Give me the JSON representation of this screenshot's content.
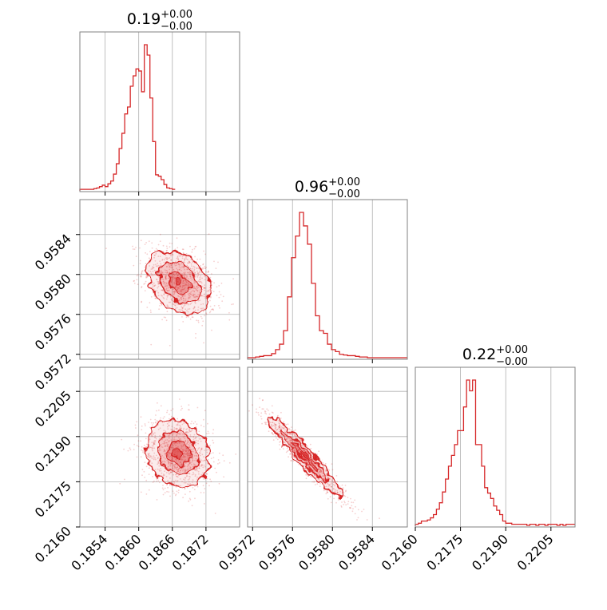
{
  "chart_data": {
    "type": "corner",
    "color": "#d62728",
    "parameters": [
      {
        "median": "0.19",
        "plus": "+0.00",
        "minus": "−0.00",
        "range": [
          1.8495,
          1.878
        ],
        "scale": 0.1,
        "ticks": [
          1.854,
          1.86,
          1.866,
          1.872
        ],
        "tick_labels": [
          "0.1854",
          "0.1860",
          "0.1866",
          "0.1872"
        ]
      },
      {
        "median": "0.96",
        "plus": "+0.00",
        "minus": "−0.00",
        "range": [
          0.95715,
          0.95875
        ],
        "scale": 1,
        "ticks": [
          0.9572,
          0.9576,
          0.958,
          0.9584
        ],
        "tick_labels": [
          "0.9572",
          "0.9576",
          "0.9580",
          "0.9584"
        ]
      },
      {
        "median": "0.22",
        "plus": "+0.00",
        "minus": "−0.00",
        "range": [
          0.216,
          0.2213
        ],
        "scale": 1,
        "ticks": [
          0.216,
          0.2175,
          0.219,
          0.2205
        ],
        "tick_labels": [
          "0.2160",
          "0.2175",
          "0.2190",
          "0.2205"
        ]
      }
    ],
    "histograms": [
      {
        "bins_start": 1.8495,
        "bin_width": 0.0005,
        "counts": [
          1,
          1,
          1,
          1,
          1,
          2,
          3,
          5,
          7,
          5,
          9,
          13,
          23,
          38,
          60,
          82,
          110,
          120,
          150,
          165,
          175,
          172,
          142,
          210,
          195,
          133,
          70,
          22,
          20,
          15,
          8,
          3,
          2,
          1
        ]
      },
      {
        "bins_start": 0.95715,
        "bin_width": 4e-05,
        "counts": [
          0,
          0,
          1,
          2,
          3,
          3,
          6,
          12,
          20,
          40,
          90,
          148,
          180,
          215,
          195,
          168,
          110,
          62,
          40,
          36,
          20,
          12,
          9,
          5,
          4,
          3,
          3,
          2,
          1,
          1,
          0,
          0,
          0,
          0,
          0,
          0,
          0,
          0,
          0,
          0
        ]
      },
      {
        "bins_start": 0.216,
        "bin_width": 0.0001,
        "counts": [
          1,
          2,
          4,
          4,
          5,
          7,
          10,
          15,
          21,
          31,
          43,
          55,
          65,
          75,
          88,
          88,
          110,
          135,
          125,
          135,
          75,
          75,
          55,
          35,
          30,
          25,
          18,
          14,
          10,
          4,
          2,
          2,
          1,
          1,
          1,
          1,
          1,
          0,
          1,
          1,
          0,
          1,
          1,
          0,
          1,
          1,
          1,
          0,
          1,
          0,
          1,
          1,
          1
        ]
      }
    ],
    "joint": [
      {
        "row": 1,
        "col": 0,
        "mean": [
          1.8672,
          0.95792
        ],
        "std": [
          0.0028,
          0.00016
        ],
        "corr": -0.35
      },
      {
        "row": 2,
        "col": 0,
        "mean": [
          1.867,
          0.21845
        ],
        "std": [
          0.0028,
          0.00055
        ],
        "corr": -0.15
      },
      {
        "row": 2,
        "col": 1,
        "mean": [
          0.95772,
          0.21835
        ],
        "std": [
          0.00018,
          0.00065
        ],
        "corr": -0.95
      }
    ],
    "grid": true
  }
}
